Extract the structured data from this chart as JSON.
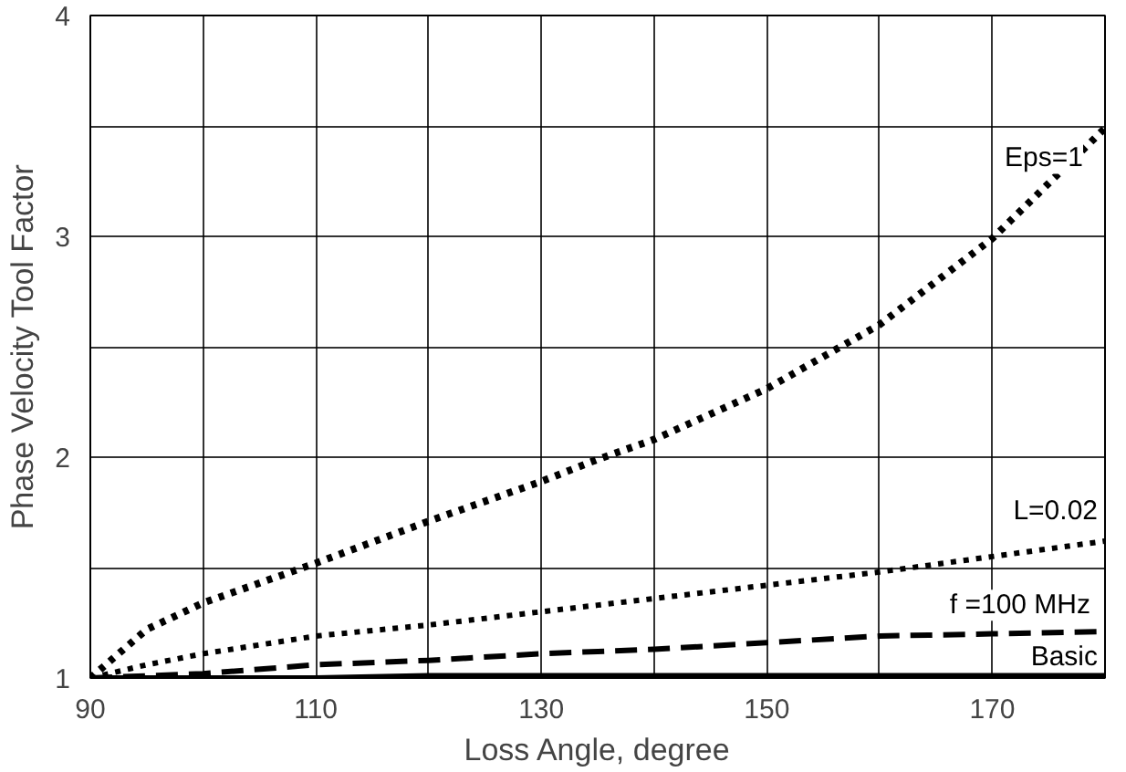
{
  "chart_data": {
    "type": "line",
    "xlabel": "Loss Angle, degree",
    "ylabel": "Phase Velocity Tool Factor",
    "x": [
      90,
      95,
      100,
      110,
      120,
      130,
      135,
      140,
      150,
      160,
      170,
      180
    ],
    "xlim": [
      90,
      180
    ],
    "ylim": [
      1,
      4
    ],
    "xticks": [
      90,
      {
        "value": 100,
        "label": null
      },
      110,
      {
        "value": 120,
        "label": null
      },
      130,
      {
        "value": 140,
        "label": null
      },
      150,
      {
        "value": 160,
        "label": null
      },
      170,
      {
        "value": 180,
        "label": null
      }
    ],
    "yticks": [
      1,
      {
        "value": 1.5,
        "label": null
      },
      2,
      {
        "value": 2.5,
        "label": null
      },
      3,
      {
        "value": 3.5,
        "label": null
      },
      4
    ],
    "grid": true,
    "series": [
      {
        "name": "Eps=1",
        "color": "#000000",
        "line_style": "dotted",
        "values": [
          1,
          1.22,
          1.34,
          1.52,
          1.71,
          1.89,
          1.99,
          2.08,
          2.31,
          2.6,
          2.99,
          3.49
        ]
      },
      {
        "name": "L=0.02",
        "color": "#000000",
        "line_style": "dotted",
        "values": [
          1,
          1.06,
          1.11,
          1.19,
          1.24,
          1.3,
          1.33,
          1.36,
          1.42,
          1.48,
          1.55,
          1.62
        ]
      },
      {
        "name": "f =100 MHz",
        "color": "#000000",
        "line_style": "dashed",
        "values": [
          1,
          1.01,
          1.02,
          1.06,
          1.08,
          1.11,
          1.12,
          1.13,
          1.16,
          1.19,
          1.2,
          1.21
        ]
      },
      {
        "name": "Basic",
        "color": "#000000",
        "line_style": "solid",
        "values": [
          1,
          1,
          1,
          1,
          1.01,
          1.01,
          1.01,
          1.01,
          1.01,
          1.01,
          1.01,
          1.01
        ]
      }
    ]
  }
}
